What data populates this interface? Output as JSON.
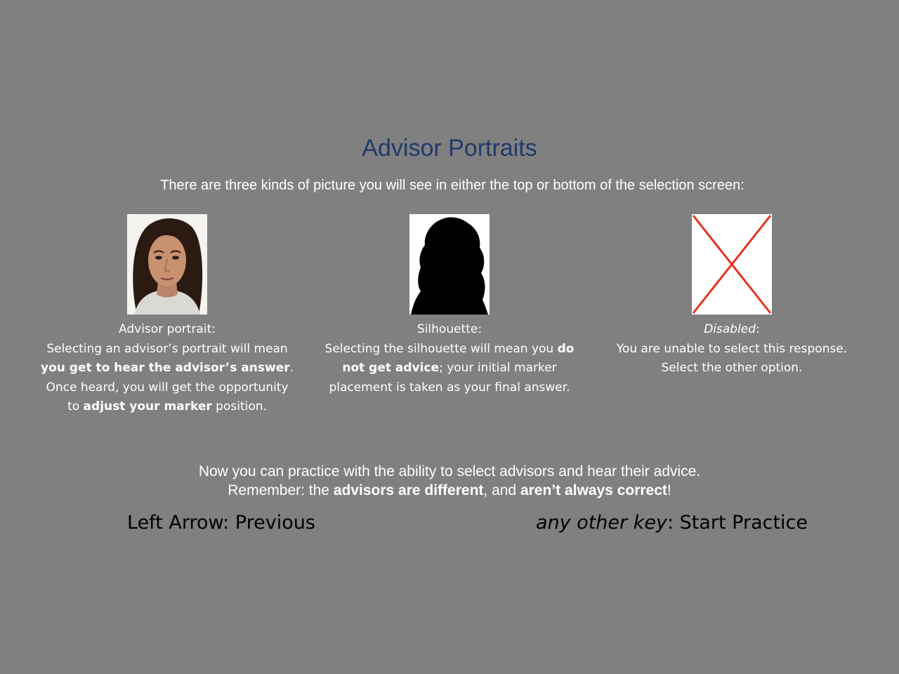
{
  "title": "Advisor Portraits",
  "intro": "There are three kinds of picture you will see in either the top or bottom of the selection screen:",
  "cards": [
    {
      "label": "Advisor portrait:",
      "text1": "Selecting an advisor’s portrait will mean ",
      "bold1": "you get to hear the advisor’s answer",
      "text2": ".",
      "text3": "Once heard, you will get the opportunity to ",
      "bold2": "adjust your marker",
      "text4": " position."
    },
    {
      "label": "Silhouette:",
      "text1": "Selecting the silhouette will mean you ",
      "bold1": "do not get advice",
      "text2": "; your initial marker placement is taken as your final answer."
    },
    {
      "label_italic": "Disabled",
      "label_suffix": ":",
      "text1": "You are unable to select this response. Select the other option."
    }
  ],
  "footer": {
    "line1": "Now you can practice with the ability to select advisors and hear their advice.",
    "line2_prefix": "Remember: the ",
    "line2_bold1": "advisors are different",
    "line2_mid": ", and ",
    "line2_bold2": "aren’t always correct",
    "line2_suffix": "!"
  },
  "nav": {
    "left": "Left Arrow: Previous",
    "right_italic": "any other key",
    "right_suffix": ": Start Practice"
  },
  "colors": {
    "background": "#808080",
    "title": "#1f3a6b",
    "disabled_x": "#e8321e"
  }
}
